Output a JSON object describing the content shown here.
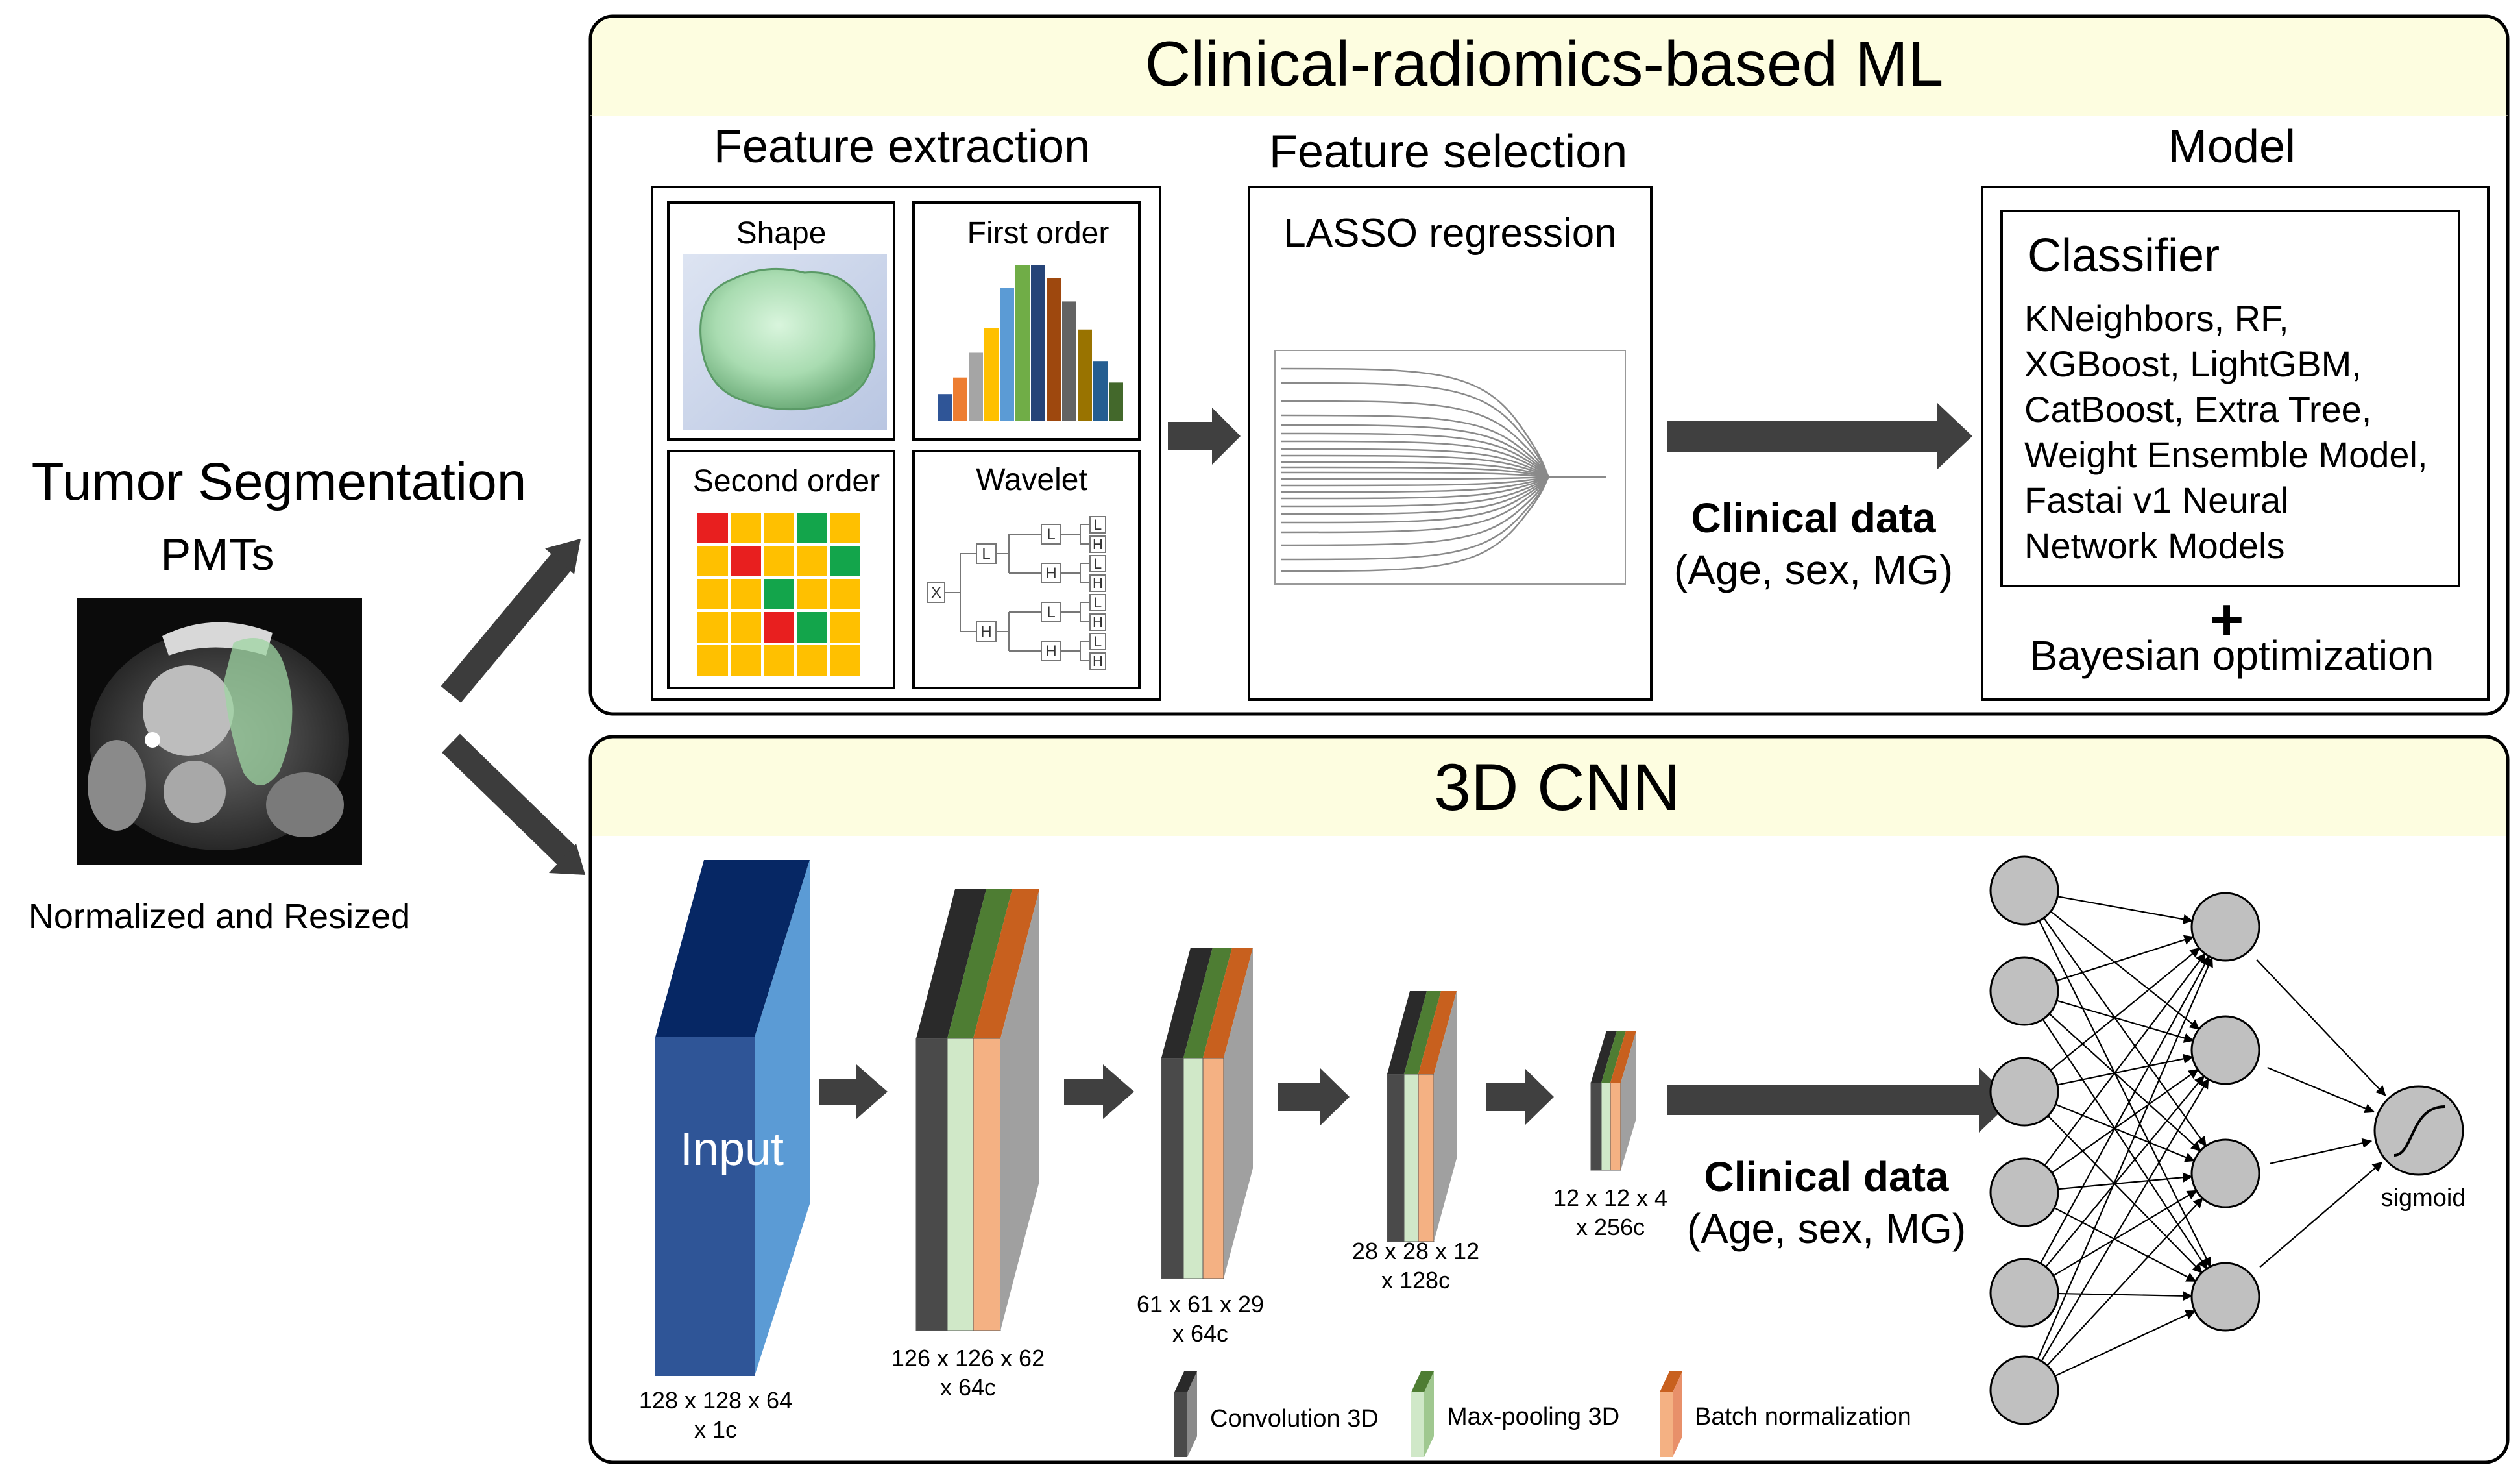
{
  "left": {
    "title": "Tumor Segmentation",
    "subtitle": "PMTs",
    "caption": "Normalized and Resized"
  },
  "ml_panel": {
    "title": "Clinical-radiomics-based ML",
    "feature_extraction": {
      "heading": "Feature extraction",
      "shape_label": "Shape",
      "first_order_label": "First order",
      "second_order_label": "Second order",
      "wavelet_label": "Wavelet",
      "wavelet_nodes": {
        "x": "X",
        "l": "L",
        "h": "H"
      }
    },
    "feature_selection": {
      "heading": "Feature selection",
      "method": "LASSO regression"
    },
    "clinical_title": "Clinical data",
    "clinical_items": "(Age, sex, MG)",
    "model": {
      "heading": "Model",
      "classifier_title": "Classifier",
      "classifier_lines": [
        "KNeighbors, RF,",
        "XGBoost, LightGBM,",
        "CatBoost, Extra Tree,",
        "Weight Ensemble Model,",
        "Fastai v1 Neural",
        "Network Models"
      ],
      "plus": "+",
      "optimization": "Bayesian optimization"
    }
  },
  "cnn_panel": {
    "title": "3D CNN",
    "input_label": "Input",
    "dims": [
      {
        "line1": "128 x 128 x 64",
        "line2": "x 1c"
      },
      {
        "line1": "126 x 126 x 62",
        "line2": "x 64c"
      },
      {
        "line1": "61 x 61 x 29",
        "line2": "x 64c"
      },
      {
        "line1": "28 x 28 x 12",
        "line2": "x 128c"
      },
      {
        "line1": "12 x 12 x 4",
        "line2": "x 256c"
      }
    ],
    "clinical_title": "Clinical data",
    "clinical_items": "(Age, sex, MG)",
    "sigmoid_label": "sigmoid",
    "legend": {
      "conv": "Convolution 3D",
      "pool": "Max-pooling 3D",
      "bn": "Batch normalization"
    }
  },
  "colors": {
    "panel_header": "#fdfde0",
    "arrow": "#404040",
    "conv": "#3a3a3a",
    "pool": "#4e7d33",
    "bn": "#c8601e",
    "node": "#c0c0c0"
  },
  "chart_data": {
    "type": "histogram",
    "title": "First order",
    "values": [
      0.16,
      0.26,
      0.41,
      0.56,
      0.8,
      0.94,
      0.94,
      0.86,
      0.72,
      0.55,
      0.36,
      0.23
    ],
    "colors": [
      "#2f5597",
      "#ed7d31",
      "#a5a5a5",
      "#ffc000",
      "#5b9bd5",
      "#70ad47",
      "#264478",
      "#9e480e",
      "#636363",
      "#997300",
      "#255e91",
      "#43682b"
    ]
  }
}
